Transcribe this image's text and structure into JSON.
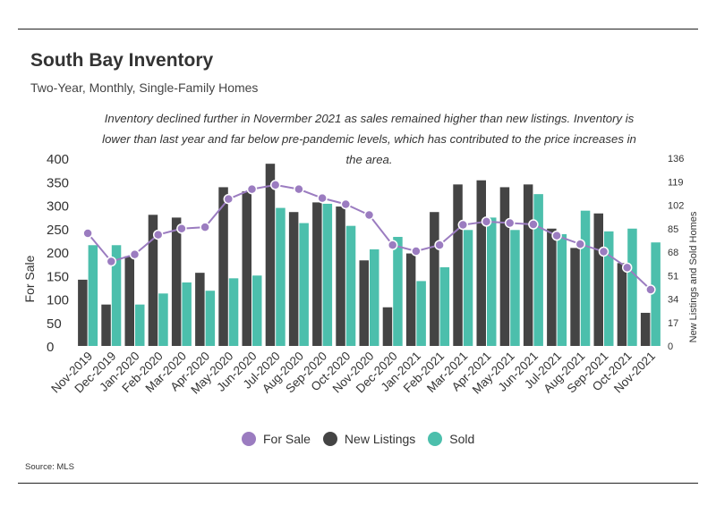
{
  "title": "South Bay Inventory",
  "subtitle": "Two-Year, Monthly, Single-Family Homes",
  "annotation": "Inventory declined further in Novermber 2021 as sales remained higher than new listings. Inventory is lower than last year and far below pre-pandemic levels, which has contributed to the price increases in the area.",
  "source": "Source:  MLS",
  "colors": {
    "for_sale": "#9b7cc0",
    "new_listings": "#444444",
    "sold": "#4cbfac"
  },
  "chart_data": {
    "type": "bar",
    "categories": [
      "Nov-2019",
      "Dec-2019",
      "Jan-2020",
      "Feb-2020",
      "Mar-2020",
      "Apr-2020",
      "May-2020",
      "Jun-2020",
      "Jul-2020",
      "Aug-2020",
      "Sep-2020",
      "Oct-2020",
      "Nov-2020",
      "Dec-2020",
      "Jan-2021",
      "Feb-2021",
      "Mar-2021",
      "Apr-2021",
      "May-2021",
      "Jun-2021",
      "Jul-2021",
      "Aug-2021",
      "Sep-2021",
      "Oct-2021",
      "Nov-2021"
    ],
    "ylabel_left": "For Sale",
    "ylabel_right": "New Listings and Sold Homes",
    "ylim_left": [
      0,
      400
    ],
    "ylim_right": [
      0,
      136
    ],
    "yticks_left": [
      "0",
      "50",
      "100",
      "150",
      "200",
      "250",
      "300",
      "350",
      "400"
    ],
    "yticks_right": [
      "0",
      "17",
      "34",
      "51",
      "68",
      "85",
      "102",
      "119",
      "136"
    ],
    "series": [
      {
        "name": "For Sale",
        "kind": "line",
        "axis": "left",
        "values": [
          240,
          180,
          195,
          237,
          250,
          253,
          313,
          334,
          343,
          334,
          315,
          302,
          279,
          215,
          202,
          215,
          258,
          265,
          262,
          259,
          235,
          217,
          201,
          167,
          120
        ]
      },
      {
        "name": "New Listings",
        "kind": "bar",
        "axis": "right",
        "values": [
          48,
          30,
          65,
          95,
          93,
          53,
          115,
          112,
          132,
          97,
          104,
          101,
          62,
          28,
          67,
          97,
          117,
          120,
          115,
          117,
          85,
          71,
          96,
          60,
          24
        ]
      },
      {
        "name": "Sold",
        "kind": "bar",
        "axis": "right",
        "values": [
          73,
          73,
          30,
          38,
          46,
          40,
          49,
          51,
          100,
          89,
          103,
          87,
          70,
          79,
          47,
          57,
          84,
          93,
          84,
          110,
          81,
          98,
          83,
          85,
          75
        ]
      }
    ],
    "legend": [
      "For Sale",
      "New Listings",
      "Sold"
    ],
    "legend_position": "bottom",
    "grid": false
  }
}
